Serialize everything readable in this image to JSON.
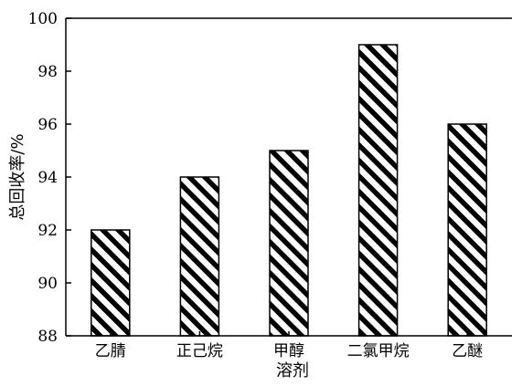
{
  "chart_data": {
    "type": "bar",
    "categories": [
      "乙腈",
      "正己烷",
      "甲醇",
      "二氯甲烷",
      "乙醚"
    ],
    "values": [
      92,
      94,
      95,
      99,
      96
    ],
    "xlabel": "溶剂",
    "ylabel": "总回收率/%",
    "ylim": [
      88,
      100
    ],
    "yticks": [
      88,
      90,
      92,
      94,
      96,
      98,
      100
    ],
    "grid": false,
    "legend": "none",
    "bar_fill": "diagonal-hatch",
    "colors": {
      "bar_stroke": "#000000",
      "hatch": "#000000",
      "background": "#ffffff"
    }
  }
}
